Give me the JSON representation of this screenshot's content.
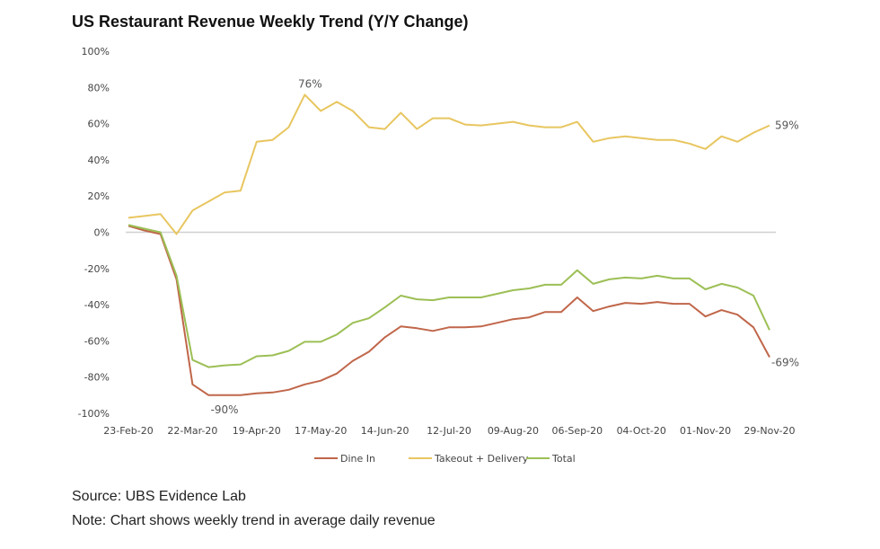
{
  "chart_data": {
    "type": "line",
    "title": "US Restaurant Revenue Weekly Trend (Y/Y Change)",
    "xlabel": "",
    "ylabel": "",
    "ylim": [
      -100,
      100
    ],
    "yticks": [
      100,
      80,
      60,
      40,
      20,
      0,
      -20,
      -40,
      -60,
      -80,
      -100
    ],
    "ytick_labels": [
      "100%",
      "80%",
      "60%",
      "40%",
      "20%",
      "0%",
      "-20%",
      "-40%",
      "-60%",
      "-80%",
      "-100%"
    ],
    "grid": false,
    "legend_position": "bottom",
    "x": [
      "23-Feb-20",
      "01-Mar-20",
      "08-Mar-20",
      "15-Mar-20",
      "22-Mar-20",
      "29-Mar-20",
      "05-Apr-20",
      "12-Apr-20",
      "19-Apr-20",
      "26-Apr-20",
      "03-May-20",
      "10-May-20",
      "17-May-20",
      "24-May-20",
      "31-May-20",
      "07-Jun-20",
      "14-Jun-20",
      "21-Jun-20",
      "28-Jun-20",
      "05-Jul-20",
      "12-Jul-20",
      "19-Jul-20",
      "26-Jul-20",
      "02-Aug-20",
      "09-Aug-20",
      "16-Aug-20",
      "23-Aug-20",
      "30-Aug-20",
      "06-Sep-20",
      "13-Sep-20",
      "20-Sep-20",
      "27-Sep-20",
      "04-Oct-20",
      "11-Oct-20",
      "18-Oct-20",
      "25-Oct-20",
      "01-Nov-20",
      "08-Nov-20",
      "15-Nov-20",
      "22-Nov-20",
      "29-Nov-20"
    ],
    "xtick_labels": [
      "23-Feb-20",
      "22-Mar-20",
      "19-Apr-20",
      "17-May-20",
      "14-Jun-20",
      "12-Jul-20",
      "09-Aug-20",
      "06-Sep-20",
      "04-Oct-20",
      "01-Nov-20",
      "29-Nov-20"
    ],
    "series": [
      {
        "name": "Dine In",
        "color": "#c0664a",
        "values": [
          3.5,
          1,
          -1,
          -26,
          -84,
          -90,
          -90,
          -90,
          -89,
          -88.5,
          -87,
          -84,
          -82,
          -78,
          -71,
          -66,
          -58,
          -52,
          -53,
          -54.5,
          -52.5,
          -52.5,
          -52,
          -50,
          -48,
          -47,
          -44,
          -44,
          -36,
          -43.5,
          -41,
          -39,
          -39.5,
          -38.5,
          -39.5,
          -39.5,
          -46.5,
          -43,
          -45.5,
          -52.5,
          -69
        ]
      },
      {
        "name": "Takeout + Delivery",
        "color": "#e8c660",
        "values": [
          8,
          9,
          10,
          -1,
          12,
          17,
          22,
          23,
          50,
          51,
          58,
          76,
          67,
          72,
          67,
          58,
          57,
          66,
          57,
          63,
          63,
          59.5,
          59,
          60,
          61,
          59,
          58,
          58,
          61,
          50,
          52,
          53,
          52,
          51,
          51,
          49,
          46,
          53,
          50,
          55,
          59
        ]
      },
      {
        "name": "Total",
        "color": "#9cbf55",
        "values": [
          4,
          2,
          0,
          -24,
          -70.5,
          -74.5,
          -73.5,
          -73,
          -68.5,
          -68,
          -65.5,
          -60.5,
          -60.5,
          -56.5,
          -50,
          -47.5,
          -41.5,
          -35,
          -37,
          -37.5,
          -36,
          -36,
          -36,
          -34,
          -32,
          -31,
          -29,
          -29,
          -21,
          -28.5,
          -26,
          -25,
          -25.5,
          -24,
          -25.5,
          -25.5,
          -31.5,
          -28.5,
          -30.5,
          -35,
          -54
        ]
      }
    ],
    "annotations": [
      {
        "text": "76%",
        "series": "Takeout + Delivery",
        "x": "10-May-20"
      },
      {
        "text": "-90%",
        "series": "Dine In",
        "x": "05-Apr-20"
      },
      {
        "text": "59%",
        "series": "Takeout + Delivery",
        "x": "29-Nov-20"
      },
      {
        "text": "-69%",
        "series": "Dine In",
        "x": "29-Nov-20"
      }
    ]
  },
  "footer": {
    "source": "Source: UBS Evidence Lab",
    "note": "Note: Chart shows weekly trend in average daily revenue"
  }
}
